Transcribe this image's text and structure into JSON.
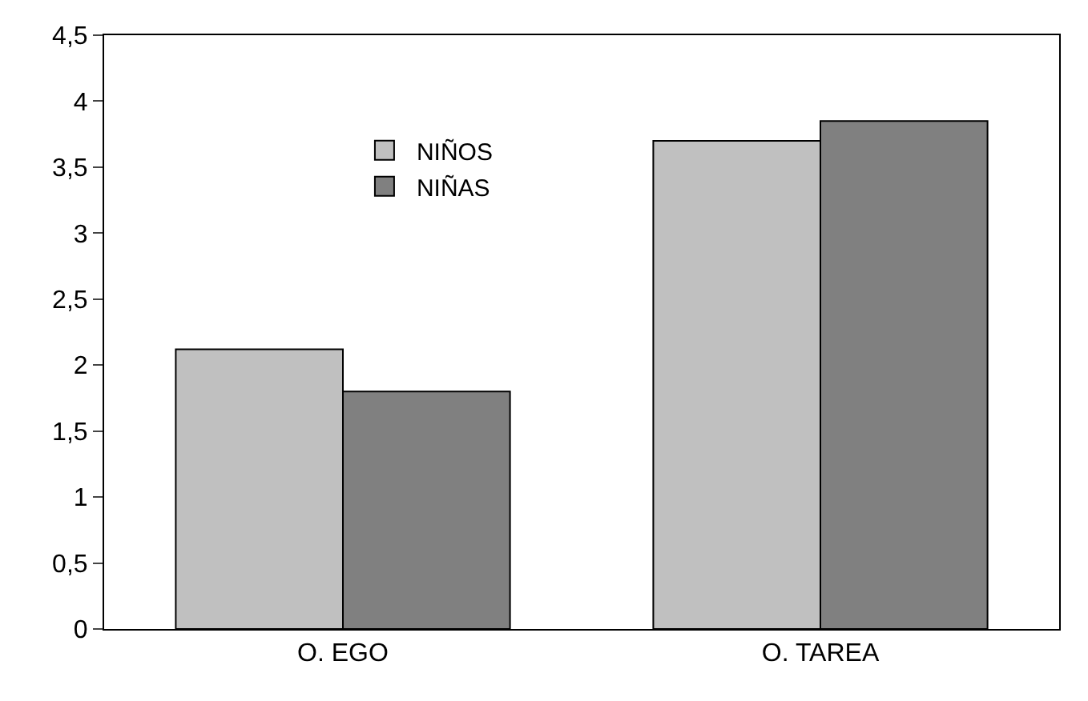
{
  "chart_data": {
    "type": "bar",
    "categories": [
      "O. EGO",
      "O. TAREA"
    ],
    "series": [
      {
        "name": "NIÑOS",
        "color": "#c0c0c0",
        "values": [
          2.12,
          3.7
        ]
      },
      {
        "name": "NIÑAS",
        "color": "#808080",
        "values": [
          1.8,
          3.85
        ]
      }
    ],
    "ylim": [
      0,
      4.5
    ],
    "yticks": [
      0,
      {
        "value": 0.5,
        "label": "0,5"
      },
      1,
      {
        "value": 1.5,
        "label": "1,5"
      },
      2,
      {
        "value": 2.5,
        "label": "2,5"
      },
      3,
      {
        "value": 3.5,
        "label": "3,5"
      },
      4,
      {
        "value": 4.5,
        "label": "4,5"
      }
    ],
    "grid": false,
    "legend": "top left"
  }
}
